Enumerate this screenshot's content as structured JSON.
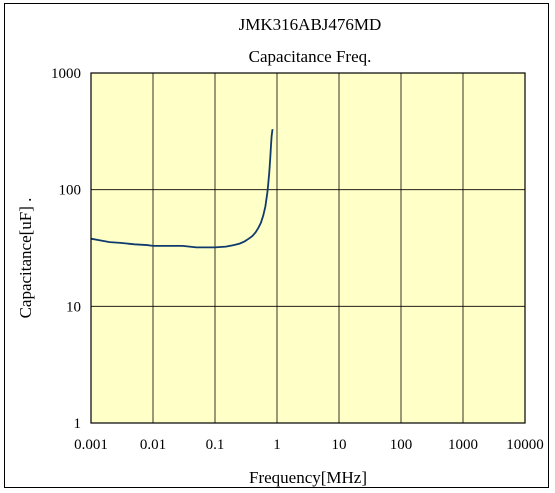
{
  "chart_data": {
    "type": "line",
    "title": "JMK316ABJ476MD",
    "subtitle": "Capacitance Freq.",
    "xlabel": "Frequency[MHz]",
    "ylabel": "Capacitance[uF] .",
    "xscale": "log",
    "yscale": "log",
    "xlim": [
      0.001,
      10000
    ],
    "ylim": [
      1,
      1000
    ],
    "x_ticks": [
      "0.001",
      "0.01",
      "0.1",
      "1",
      "10",
      "100",
      "1000",
      "10000"
    ],
    "y_ticks": [
      "1",
      "10",
      "100",
      "1000"
    ],
    "grid": true,
    "legend": "none",
    "colors": {
      "plot_background": "#ffffc8",
      "line": "#0f3a6e",
      "grid": "#000000"
    },
    "series": [
      {
        "x": [
          0.001,
          0.0013,
          0.002,
          0.003,
          0.005,
          0.008,
          0.01,
          0.02,
          0.03,
          0.05,
          0.08,
          0.1,
          0.15,
          0.2,
          0.25,
          0.3,
          0.35,
          0.4,
          0.45,
          0.5,
          0.55,
          0.6,
          0.65,
          0.7,
          0.72,
          0.75,
          0.78,
          0.8,
          0.82,
          0.84,
          0.85
        ],
        "y": [
          38,
          37,
          35.5,
          35,
          34,
          33.5,
          33,
          33,
          33,
          32,
          32,
          32,
          32.5,
          33.5,
          34.5,
          36,
          38,
          40,
          43,
          47,
          52,
          60,
          72,
          95,
          110,
          140,
          190,
          240,
          290,
          320,
          330
        ]
      }
    ]
  }
}
